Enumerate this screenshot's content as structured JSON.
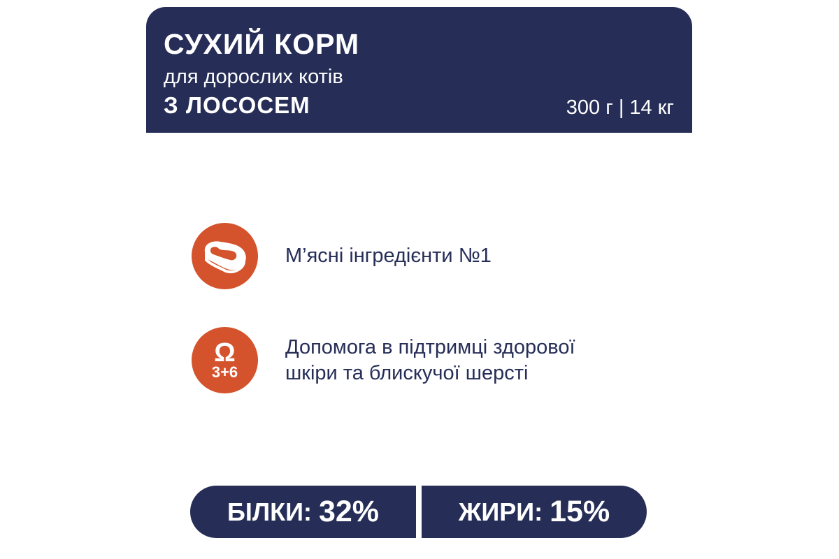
{
  "header": {
    "title": "СУХИЙ КОРМ",
    "subtitle": "для дорослих котів",
    "flavor": "З ЛОСОСЕМ",
    "weights": "300 г | 14 кг"
  },
  "features": [
    {
      "icon": "meat-steak-icon",
      "text": "М’ясні інгредієнти №1"
    },
    {
      "icon": "omega-3-6-icon",
      "icon_symbol": "Ω",
      "icon_label": "3+6",
      "text_line1": "Допомога в підтримці здорової",
      "text_line2": "шкіри та блискучої шерсті"
    }
  ],
  "nutrients": [
    {
      "label": "БІЛКИ:",
      "value": "32%"
    },
    {
      "label": "ЖИРИ:",
      "value": "15%"
    }
  ],
  "colors": {
    "navy": "#262e57",
    "accent": "#d4532c"
  }
}
